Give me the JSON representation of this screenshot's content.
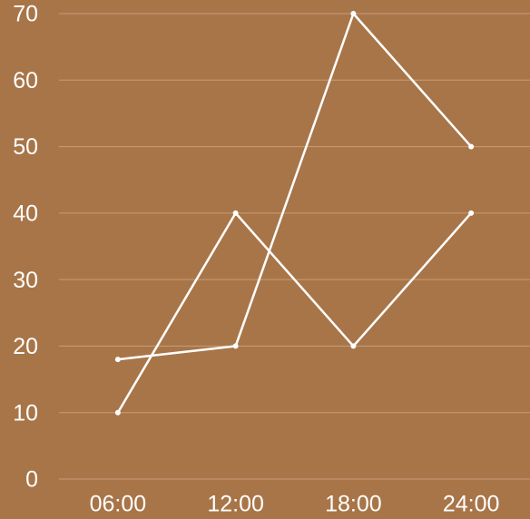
{
  "chart_data": {
    "type": "line",
    "categories": [
      "06:00",
      "12:00",
      "18:00",
      "24:00"
    ],
    "series": [
      {
        "color": "#ffffff",
        "values": [
          10,
          40,
          20,
          40
        ]
      },
      {
        "color": "#ffffff",
        "values": [
          18,
          20,
          70,
          50
        ]
      }
    ],
    "ylim": [
      0,
      70
    ],
    "yticks": [
      0,
      10,
      20,
      30,
      40,
      50,
      60,
      70
    ],
    "grid": true
  }
}
